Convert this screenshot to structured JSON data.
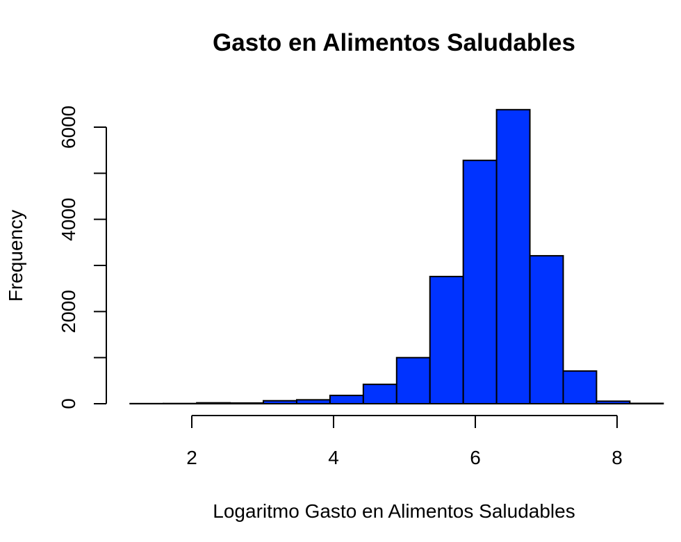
{
  "chart_data": {
    "type": "histogram",
    "title": "Gasto en Alimentos Saludables",
    "xlabel": "Logaritmo Gasto en Alimentos Saludables",
    "ylabel": "Frequency",
    "bar_color": "#0033ff",
    "xlim": [
      1.0,
      8.6
    ],
    "ylim": [
      0,
      6400
    ],
    "x_ticks": [
      2,
      4,
      6,
      8
    ],
    "y_ticks": [
      0,
      2000,
      4000,
      6000
    ],
    "bins": [
      {
        "x0": 1.13,
        "x1": 1.6,
        "count": 3
      },
      {
        "x0": 1.6,
        "x1": 2.07,
        "count": 5
      },
      {
        "x0": 2.07,
        "x1": 2.54,
        "count": 20
      },
      {
        "x0": 2.54,
        "x1": 3.01,
        "count": 15
      },
      {
        "x0": 3.01,
        "x1": 3.48,
        "count": 65
      },
      {
        "x0": 3.48,
        "x1": 3.95,
        "count": 85
      },
      {
        "x0": 3.95,
        "x1": 4.42,
        "count": 180
      },
      {
        "x0": 4.42,
        "x1": 4.89,
        "count": 420
      },
      {
        "x0": 4.89,
        "x1": 5.36,
        "count": 1000
      },
      {
        "x0": 5.36,
        "x1": 5.83,
        "count": 2760
      },
      {
        "x0": 5.83,
        "x1": 6.3,
        "count": 5280
      },
      {
        "x0": 6.3,
        "x1": 6.77,
        "count": 6380
      },
      {
        "x0": 6.77,
        "x1": 7.24,
        "count": 3210
      },
      {
        "x0": 7.24,
        "x1": 7.71,
        "count": 710
      },
      {
        "x0": 7.71,
        "x1": 8.18,
        "count": 55
      },
      {
        "x0": 8.18,
        "x1": 8.65,
        "count": 8
      }
    ]
  }
}
